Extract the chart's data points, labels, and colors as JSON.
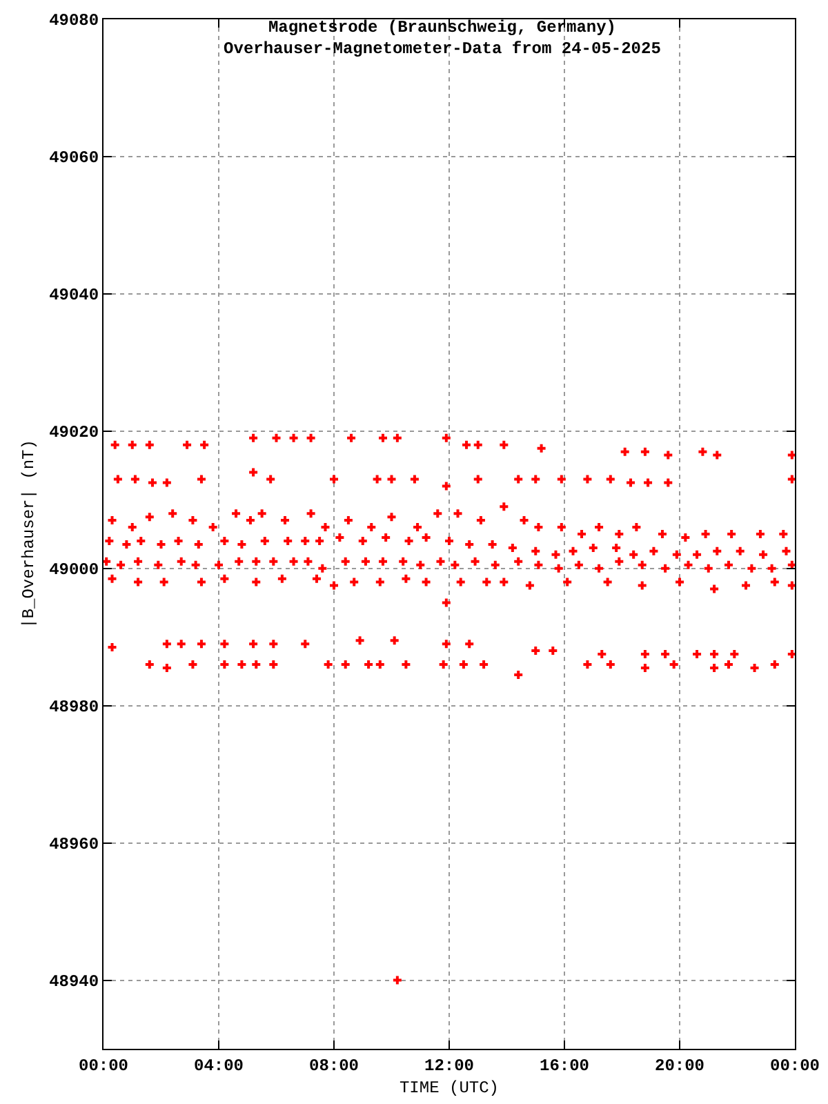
{
  "chart_data": {
    "type": "scatter",
    "title": "Magnetsrode (Braunschweig, Germany)",
    "subtitle": "Overhauser-Magnetometer-Data from 24-05-2025",
    "xlabel": "TIME (UTC)",
    "ylabel": "|B_Overhauser| (nT)",
    "xlim": [
      0,
      24
    ],
    "xticks": [
      {
        "value": 0,
        "label": "00:00"
      },
      {
        "value": 4,
        "label": "04:00"
      },
      {
        "value": 8,
        "label": "08:00"
      },
      {
        "value": 12,
        "label": "12:00"
      },
      {
        "value": 16,
        "label": "16:00"
      },
      {
        "value": 20,
        "label": "20:00"
      },
      {
        "value": 24,
        "label": "00:00"
      }
    ],
    "ylim": [
      48930,
      49080
    ],
    "yticks": [
      48940,
      48960,
      48980,
      49000,
      49020,
      49040,
      49060,
      49080
    ],
    "grid": true,
    "marker": "cross",
    "series": [
      {
        "color": "#ff0000",
        "x": [
          0.4,
          1.0,
          1.6,
          2.9,
          3.5,
          5.2,
          6.0,
          6.6,
          7.2,
          8.6,
          9.7,
          10.2,
          11.9,
          12.6,
          13.0,
          13.9,
          15.2,
          18.1,
          18.8,
          19.6,
          20.8,
          21.3,
          23.9
        ],
        "values": [
          49018,
          49018,
          49018,
          49018,
          49018,
          49019,
          49019,
          49019,
          49019,
          49019,
          49019,
          49019,
          49019,
          49018,
          49018,
          49018,
          49017.5,
          49017,
          49017,
          49016.5,
          49017,
          49016.5,
          49016.5
        ]
      },
      {
        "color": "#ff0000",
        "x": [
          0.5,
          1.1,
          1.7,
          2.2,
          3.4,
          5.2,
          5.8,
          8.0,
          9.5,
          10.0,
          10.8,
          11.9,
          13.0,
          14.4,
          15.0,
          15.9,
          16.8,
          17.6,
          18.3,
          18.9,
          19.6,
          23.9
        ],
        "values": [
          49013,
          49013,
          49012.5,
          49012.5,
          49013,
          49014,
          49013,
          49013,
          49013,
          49013,
          49013,
          49012,
          49013,
          49013,
          49013,
          49013,
          49013,
          49013,
          49012.5,
          49012.5,
          49012.5,
          49013
        ]
      },
      {
        "color": "#ff0000",
        "x": [
          0.3,
          1.0,
          1.6,
          2.4,
          3.1,
          3.8,
          4.6,
          5.1,
          5.5,
          6.3,
          7.2,
          7.7,
          8.5,
          9.3,
          10.0,
          10.9,
          11.6,
          12.3,
          13.1,
          13.9,
          14.6,
          15.1,
          15.9,
          16.6,
          17.2,
          17.9,
          18.5,
          19.4,
          20.2,
          20.9,
          21.8,
          22.8,
          23.6
        ],
        "values": [
          49007,
          49006,
          49007.5,
          49008,
          49007,
          49006,
          49008,
          49007,
          49008,
          49007,
          49008,
          49006,
          49007,
          49006,
          49007.5,
          49006,
          49008,
          49008,
          49007,
          49009,
          49007,
          49006,
          49006,
          49005,
          49006,
          49005,
          49006,
          49005,
          49004.5,
          49005,
          49005,
          49005,
          49005
        ]
      },
      {
        "color": "#ff0000",
        "x": [
          0.2,
          0.8,
          1.3,
          2.0,
          2.6,
          3.3,
          4.2,
          4.8,
          5.6,
          6.4,
          7.0,
          7.5,
          8.2,
          9.0,
          9.8,
          10.6,
          11.2,
          12.0,
          12.7,
          13.5,
          14.2,
          15.0,
          15.7,
          16.3,
          17.0,
          17.8,
          18.4,
          19.1,
          19.9,
          20.6,
          21.3,
          22.1,
          22.9,
          23.7
        ],
        "values": [
          49004,
          49003.5,
          49004,
          49003.5,
          49004,
          49003.5,
          49004,
          49003.5,
          49004,
          49004,
          49004,
          49004,
          49004.5,
          49004,
          49004.5,
          49004,
          49004.5,
          49004,
          49003.5,
          49003.5,
          49003,
          49002.5,
          49002,
          49002.5,
          49003,
          49003,
          49002,
          49002.5,
          49002,
          49002,
          49002.5,
          49002.5,
          49002,
          49002.5
        ]
      },
      {
        "color": "#ff0000",
        "x": [
          0.1,
          0.6,
          1.2,
          1.9,
          2.7,
          3.2,
          4.0,
          4.7,
          5.3,
          5.9,
          6.6,
          7.1,
          7.6,
          8.4,
          9.1,
          9.7,
          10.4,
          11.0,
          11.7,
          12.2,
          12.9,
          13.6,
          14.4,
          15.1,
          15.8,
          16.5,
          17.2,
          17.9,
          18.7,
          19.5,
          20.3,
          21.0,
          21.7,
          22.5,
          23.2,
          23.9
        ],
        "values": [
          49001,
          49000.5,
          49001,
          49000.5,
          49001,
          49000.5,
          49000.5,
          49001,
          49001,
          49001,
          49001,
          49001,
          49000,
          49001,
          49001,
          49001,
          49001,
          49000.5,
          49001,
          49000.5,
          49001,
          49000.5,
          49001,
          49000.5,
          49000,
          49000.5,
          49000,
          49001,
          49000.5,
          49000,
          49000.5,
          49000,
          49000.5,
          49000,
          49000,
          49000.5
        ]
      },
      {
        "color": "#ff0000",
        "x": [
          0.3,
          1.2,
          2.1,
          3.4,
          4.2,
          5.3,
          6.2,
          7.4,
          8.0,
          8.7,
          9.6,
          10.5,
          11.2,
          11.9,
          12.4,
          13.3,
          13.9,
          14.8,
          16.1,
          17.5,
          18.7,
          20.0,
          21.2,
          22.3,
          23.3,
          23.9
        ],
        "values": [
          48998.5,
          48998,
          48998,
          48998,
          48998.5,
          48998,
          48998.5,
          48998.5,
          48997.5,
          48998,
          48998,
          48998.5,
          48998,
          48995,
          48998,
          48998,
          48998,
          48997.5,
          48998,
          48998,
          48997.5,
          48998,
          48997,
          48997.5,
          48998,
          48997.5
        ]
      },
      {
        "color": "#ff0000",
        "x": [
          0.3,
          2.2,
          2.7,
          3.4,
          4.2,
          5.2,
          5.9,
          7.0,
          8.9,
          10.1,
          11.9,
          12.7,
          15.0,
          15.6,
          17.3,
          18.8,
          19.5,
          20.6,
          21.2,
          21.9,
          23.9
        ],
        "values": [
          48988.5,
          48989,
          48989,
          48989,
          48989,
          48989,
          48989,
          48989,
          48989.5,
          48989.5,
          48989,
          48989,
          48988,
          48988,
          48987.5,
          48987.5,
          48987.5,
          48987.5,
          48987.5,
          48987.5,
          48987.5
        ]
      },
      {
        "color": "#ff0000",
        "x": [
          1.6,
          2.2,
          3.1,
          4.2,
          4.8,
          5.3,
          5.9,
          7.8,
          8.4,
          9.2,
          9.6,
          10.2,
          10.5,
          11.8,
          12.5,
          13.2,
          14.4,
          16.8,
          17.6,
          18.8,
          19.8,
          21.2,
          21.7,
          22.6,
          23.3
        ],
        "values": [
          48986,
          48985.5,
          48986,
          48986,
          48986,
          48986,
          48986,
          48986,
          48986,
          48986,
          48986,
          48940,
          48986,
          48986,
          48986,
          48986,
          48984.5,
          48986,
          48986,
          48985.5,
          48986,
          48985.5,
          48986,
          48985.5,
          48986
        ]
      }
    ]
  }
}
